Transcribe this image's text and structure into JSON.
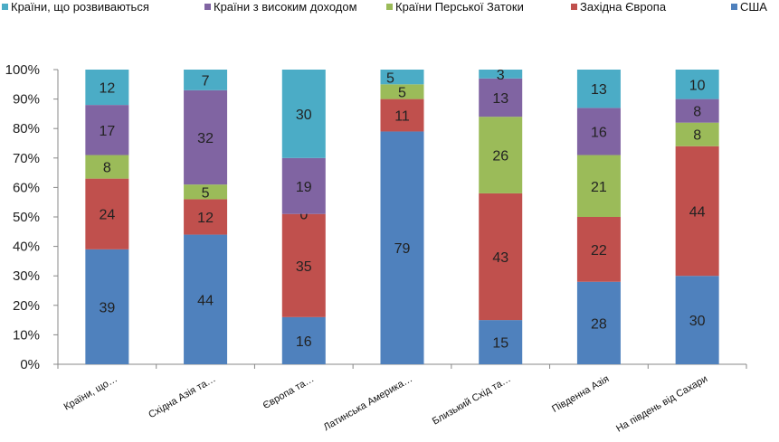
{
  "colors": {
    "developing": "#4bacc6",
    "high_income": "#8064a2",
    "gulf": "#9bbb59",
    "western_europe": "#c0504d",
    "usa": "#4f81bd"
  },
  "chart_data": {
    "type": "bar",
    "stacked": true,
    "percent": true,
    "title": "",
    "xlabel": "",
    "ylabel": "",
    "ylim": [
      0,
      100
    ],
    "yticks": [
      "0%",
      "10%",
      "20%",
      "30%",
      "40%",
      "50%",
      "60%",
      "70%",
      "80%",
      "90%",
      "100%"
    ],
    "legend_position": "top",
    "grid": false,
    "categories": [
      "Країни, що…",
      "Східна Азія та…",
      "Європа та…",
      "Латинська Америка…",
      "Близький Схід та…",
      "Південна Азія",
      "На південь від Сахари"
    ],
    "series": [
      {
        "name": "США",
        "color_key": "usa",
        "values": [
          39,
          44,
          16,
          79,
          15,
          28,
          30
        ]
      },
      {
        "name": "Західна Європа",
        "color_key": "western_europe",
        "values": [
          24,
          12,
          35,
          11,
          43,
          22,
          44
        ]
      },
      {
        "name": "Країни Перської Затоки",
        "color_key": "gulf",
        "values": [
          8,
          5,
          0,
          5,
          26,
          21,
          8
        ]
      },
      {
        "name": "Країни з високим доходом",
        "color_key": "high_income",
        "values": [
          17,
          32,
          19,
          0,
          13,
          16,
          8
        ]
      },
      {
        "name": "Країни, що розвиваються",
        "color_key": "developing",
        "values": [
          12,
          7,
          30,
          5,
          3,
          13,
          10
        ]
      }
    ],
    "legend_order": [
      "Країни, що розвиваються",
      "Країни з високим доходом",
      "Країни Перської Затоки",
      "Західна Європа",
      "США"
    ]
  }
}
